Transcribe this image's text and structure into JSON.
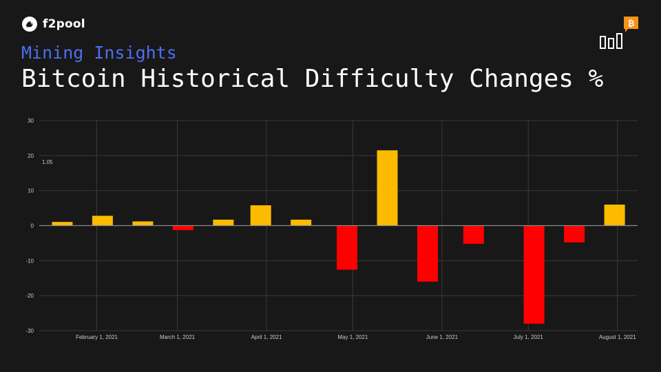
{
  "brand": {
    "name": "f2pool",
    "logo_icon": "fish-icon"
  },
  "header": {
    "subtitle": "Mining Insights",
    "title": "Bitcoin Historical Difficulty Changes %"
  },
  "corner_icon": "bitcoin-bar-chart-icon",
  "colors": {
    "positive": "#fdbb00",
    "negative": "#ff0000",
    "accent": "#4f6ef0",
    "bitcoin": "#f7931a"
  },
  "chart_data": {
    "type": "bar",
    "title": "Bitcoin Historical Difficulty Changes %",
    "xlabel": "",
    "ylabel": "",
    "ylim": [
      -30,
      30
    ],
    "yticks": [
      30,
      20,
      10,
      0,
      -10,
      -20,
      -30
    ],
    "xlim": [
      "2021-01-12",
      "2021-08-08"
    ],
    "xticks": [
      {
        "date": "2021-02-01",
        "label": "February 1, 2021"
      },
      {
        "date": "2021-03-01",
        "label": "March 1, 2021"
      },
      {
        "date": "2021-04-01",
        "label": "April 1, 2021"
      },
      {
        "date": "2021-05-01",
        "label": "May 1, 2021"
      },
      {
        "date": "2021-06-01",
        "label": "June 1, 2021"
      },
      {
        "date": "2021-07-01",
        "label": "July 1, 2021"
      },
      {
        "date": "2021-08-01",
        "label": "August 1, 2021"
      }
    ],
    "x": [
      "2021-01-20",
      "2021-02-03",
      "2021-02-17",
      "2021-03-03",
      "2021-03-17",
      "2021-03-30",
      "2021-04-13",
      "2021-04-29",
      "2021-05-13",
      "2021-05-27",
      "2021-06-12",
      "2021-07-03",
      "2021-07-17",
      "2021-07-31"
    ],
    "values": [
      1.05,
      2.8,
      1.2,
      -1.3,
      1.7,
      5.8,
      1.7,
      -12.6,
      21.5,
      -16.0,
      -5.2,
      -28.0,
      -4.8,
      6.0
    ],
    "annotation": {
      "text": "1.05"
    },
    "grid": true,
    "legend": "none"
  }
}
